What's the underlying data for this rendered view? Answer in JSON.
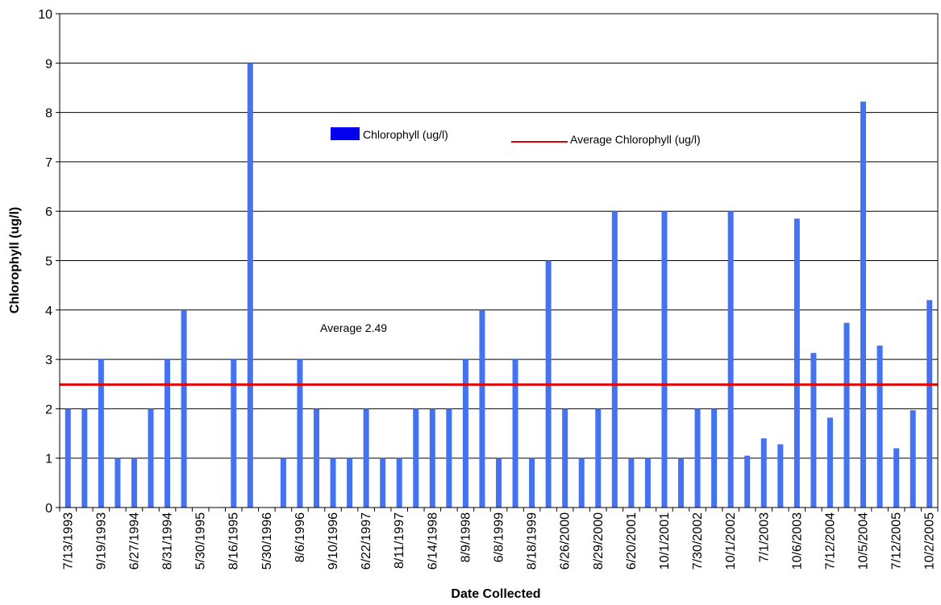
{
  "chart_data": {
    "type": "bar",
    "xlabel": "Date Collected",
    "ylabel": "Chlorophyll (ug/l)",
    "ylim": [
      0,
      10
    ],
    "yticks": [
      0,
      1,
      2,
      3,
      4,
      5,
      6,
      7,
      8,
      9,
      10
    ],
    "grid": "horizontal",
    "bar_color": "#4472F0",
    "average_line_color": "#E00000",
    "legend": [
      {
        "name": "Chlorophyll (ug/l)",
        "kind": "bar",
        "color": "#0000EE"
      },
      {
        "name": "Average Chlorophyll (ug/l)",
        "kind": "line",
        "color": "#E00000"
      }
    ],
    "categories": [
      "7/13/1993",
      "",
      "9/19/1993",
      "",
      "6/27/1994",
      "",
      "8/31/1994",
      "",
      "5/30/1995",
      "",
      "8/16/1995",
      "",
      "5/30/1996",
      "",
      "8/6/1996",
      "",
      "9/10/1996",
      "",
      "6/22/1997",
      "",
      "8/11/1997",
      "",
      "6/14/1998",
      "",
      "8/9/1998",
      "",
      "6/8/1999",
      "",
      "8/18/1999",
      "",
      "6/26/2000",
      "",
      "8/29/2000",
      "",
      "6/20/2001",
      "",
      "10/1/2001",
      "",
      "7/30/2002",
      "",
      "10/1/2002",
      "",
      "7/1/2003",
      "",
      "10/6/2003",
      "",
      "7/12/2004",
      "",
      "10/5/2004",
      "",
      "7/12/2005",
      "",
      "10/2/2005"
    ],
    "series": [
      {
        "name": "Chlorophyll (ug/l)",
        "values": [
          2,
          2,
          3,
          1,
          1,
          2,
          3,
          4,
          0,
          0,
          3,
          9,
          0,
          1,
          3,
          2,
          1,
          1,
          2,
          1,
          1,
          2,
          2,
          2,
          3,
          4,
          1,
          3,
          1,
          5,
          2,
          1,
          2,
          6,
          1,
          1,
          6,
          1,
          2,
          2,
          6,
          1.05,
          1.4,
          1.28,
          5.85,
          3.13,
          1.82,
          3.74,
          8.22,
          3.28,
          1.2,
          1.97,
          4.2
        ]
      }
    ],
    "average": 2.49,
    "average_annotation": "Average 2.49"
  }
}
